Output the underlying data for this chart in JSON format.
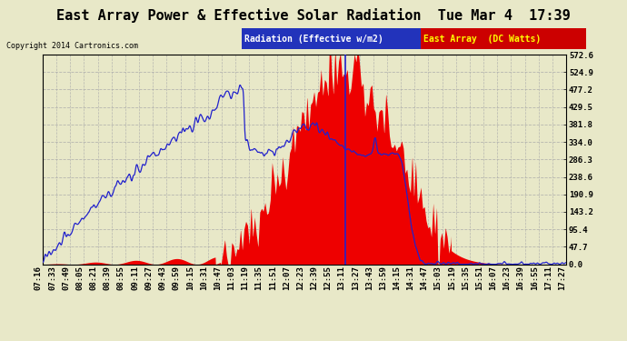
{
  "title": "East Array Power & Effective Solar Radiation  Tue Mar 4  17:39",
  "copyright": "Copyright 2014 Cartronics.com",
  "legend_label_rad": "Radiation (Effective w/m2)",
  "legend_label_east": "East Array  (DC Watts)",
  "ylabel_right_values": [
    572.6,
    524.9,
    477.2,
    429.5,
    381.8,
    334.0,
    286.3,
    238.6,
    190.9,
    143.2,
    95.4,
    47.7,
    0.0
  ],
  "ymax": 572.6,
  "ymin": 0.0,
  "background_color": "#e8e8c8",
  "plot_bg": "#e8e8c8",
  "grid_color": "#aaaaaa",
  "title_fontsize": 11,
  "tick_fontsize": 6.5,
  "x_tick_labels": [
    "07:16",
    "07:33",
    "07:49",
    "08:05",
    "08:21",
    "08:39",
    "08:55",
    "09:11",
    "09:27",
    "09:43",
    "09:59",
    "10:15",
    "10:31",
    "10:47",
    "11:03",
    "11:19",
    "11:35",
    "11:51",
    "12:07",
    "12:23",
    "12:39",
    "12:55",
    "13:11",
    "13:27",
    "13:43",
    "13:59",
    "14:15",
    "14:31",
    "14:47",
    "15:03",
    "15:19",
    "15:35",
    "15:51",
    "16:07",
    "16:23",
    "16:39",
    "16:55",
    "17:11",
    "17:27"
  ],
  "n_labels": 39
}
